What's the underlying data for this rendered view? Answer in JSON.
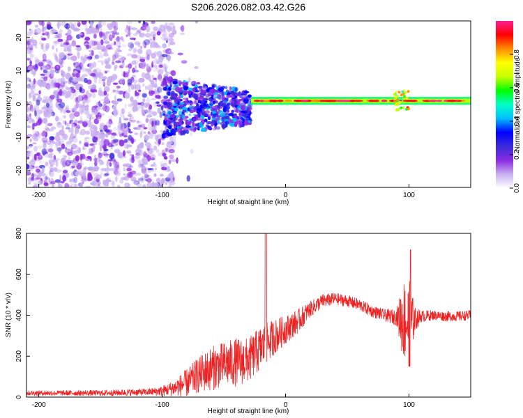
{
  "title": "S206.2026.082.03.42.G26",
  "colors": {
    "signal": "#ee2222",
    "axis": "#000000",
    "background": "#ffffff"
  },
  "chart_data": [
    {
      "type": "heatmap",
      "title": "S206.2026.082.03.42.G26",
      "xlabel": "Height of straight line (km)",
      "ylabel": "Frequency (Hz)",
      "xlim": [
        -210,
        150
      ],
      "ylim": [
        -25,
        25
      ],
      "xticks": [
        -200,
        -100,
        0,
        100
      ],
      "yticks": [
        -20,
        -10,
        0,
        10,
        20
      ],
      "colorbar": {
        "label": "Normalized spectral amplitude",
        "range": [
          0,
          1
        ],
        "ticks": [
          "0.0",
          "0.2",
          "0.4",
          "0.6",
          "0.8"
        ],
        "colormap": [
          "#ffffff",
          "#c8b0f0",
          "#8a2be2",
          "#3a2bd8",
          "#0000ff",
          "#00bfff",
          "#00ffc8",
          "#00ff00",
          "#c8ff00",
          "#ffff00",
          "#ff8c00",
          "#ff0000",
          "#ff1e96"
        ]
      },
      "description_segments": [
        {
          "x_from": -210,
          "x_to": -100,
          "freq_spread": 25,
          "amplitude": 0.15
        },
        {
          "x_from": -100,
          "x_to": -30,
          "freq_spread": 8,
          "amplitude": 0.3
        },
        {
          "x_from": -30,
          "x_to": 150,
          "freq_center": 1,
          "freq_spread": 1,
          "amplitude": 0.8
        }
      ]
    },
    {
      "type": "line",
      "xlabel": "Height of straight line (km)",
      "ylabel": "SNR (10 * v/v)",
      "xlim": [
        -210,
        150
      ],
      "ylim": [
        0,
        800
      ],
      "xticks": [
        -200,
        -100,
        0,
        100
      ],
      "yticks": [
        0,
        200,
        400,
        600,
        800
      ],
      "envelope_x": [
        -210,
        -150,
        -110,
        -100,
        -90,
        -80,
        -70,
        -60,
        -50,
        -40,
        -30,
        -20,
        -10,
        0,
        10,
        20,
        30,
        40,
        50,
        60,
        70,
        80,
        90,
        95,
        100,
        105,
        110,
        120,
        130,
        140,
        150
      ],
      "envelope_mean": [
        20,
        20,
        25,
        30,
        45,
        70,
        110,
        140,
        160,
        170,
        180,
        240,
        290,
        330,
        370,
        430,
        470,
        480,
        470,
        450,
        420,
        400,
        390,
        380,
        370,
        380,
        395,
        400,
        395,
        395,
        400
      ],
      "envelope_amp": [
        12,
        14,
        18,
        25,
        40,
        70,
        90,
        110,
        110,
        120,
        110,
        110,
        90,
        70,
        60,
        40,
        35,
        30,
        30,
        30,
        30,
        30,
        40,
        200,
        210,
        60,
        30,
        25,
        25,
        25,
        25
      ]
    }
  ]
}
